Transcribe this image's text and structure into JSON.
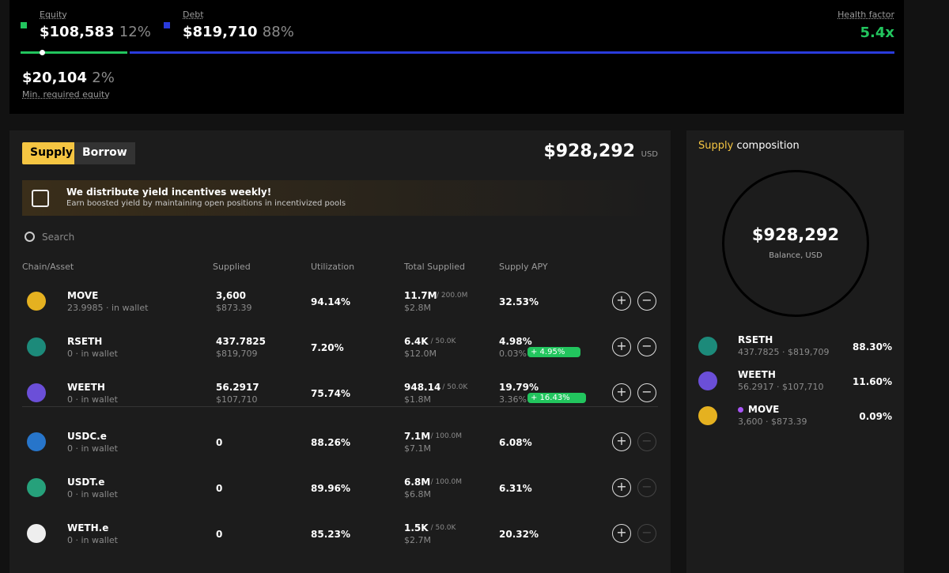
{
  "summary": {
    "equity": {
      "label": "Equity",
      "value": "$108,583",
      "pct": "12%"
    },
    "debt": {
      "label": "Debt",
      "value": "$819,710",
      "pct": "88%"
    },
    "health": {
      "label": "Health factor",
      "value": "5.4x"
    },
    "min_equity": {
      "value": "$20,104",
      "pct": "2%",
      "label": "Min. required equity"
    }
  },
  "tabs": [
    "Supply",
    "Borrow"
  ],
  "total": {
    "value": "$928,292",
    "unit": "USD"
  },
  "banner": {
    "title": "We distribute yield incentives weekly!",
    "text": "Earn boosted yield by maintaining open positions in incentivized pools"
  },
  "search_placeholder": "Search",
  "table": {
    "columns": [
      "Chain/Asset",
      "Supplied",
      "Utilization",
      "Total Supplied",
      "Supply APY"
    ],
    "rows": [
      {
        "asset": "MOVE",
        "wallet": "23.9985 · in wallet",
        "supplied": "3,600",
        "supplied_usd": "$873.39",
        "utilization": "94.14%",
        "total": "11.7M",
        "cap": "/ 200.0M",
        "total_usd": "$2.8M",
        "apy": "32.53%"
      },
      {
        "asset": "RSETH",
        "wallet": "0 · in wallet",
        "supplied": "437.7825",
        "supplied_usd": "$819,709",
        "utilization": "7.20%",
        "total": "6.4K",
        "cap": "/ 50.0K",
        "total_usd": "$12.0M",
        "apy": "4.98%",
        "apy_base": "0.03%",
        "boost": "+ 4.95%"
      },
      {
        "asset": "WEETH",
        "wallet": "0 · in wallet",
        "supplied": "56.2917",
        "supplied_usd": "$107,710",
        "utilization": "75.74%",
        "total": "948.14",
        "cap": "/ 50.0K",
        "total_usd": "$1.8M",
        "apy": "19.79%",
        "apy_base": "3.36%",
        "boost": "+ 16.43%"
      },
      {
        "asset": "USDC.e",
        "wallet": "0 · in wallet",
        "supplied": "0",
        "utilization": "88.26%",
        "total": "7.1M",
        "cap": "/ 100.0M",
        "total_usd": "$7.1M",
        "apy": "6.08%"
      },
      {
        "asset": "USDT.e",
        "wallet": "0 · in wallet",
        "supplied": "0",
        "utilization": "89.96%",
        "total": "6.8M",
        "cap": "/ 100.0M",
        "total_usd": "$6.8M",
        "apy": "6.31%"
      },
      {
        "asset": "WETH.e",
        "wallet": "0 · in wallet",
        "supplied": "0",
        "utilization": "85.23%",
        "total": "1.5K",
        "cap": "/ 50.0K",
        "total_usd": "$2.7M",
        "apy": "20.32%"
      }
    ]
  },
  "composition": {
    "title_highlight": "Supply",
    "title_rest": "composition",
    "balance": "$928,292",
    "balance_label": "Balance, USD",
    "items": [
      {
        "name": "RSETH",
        "detail": "437.7825 · $819,709",
        "pct": "88.30%"
      },
      {
        "name": "WEETH",
        "detail": "56.2917 · $107,710",
        "pct": "11.60%"
      },
      {
        "name": "MOVE",
        "detail": "3,600 · $873.39",
        "pct": "0.09%"
      }
    ]
  }
}
